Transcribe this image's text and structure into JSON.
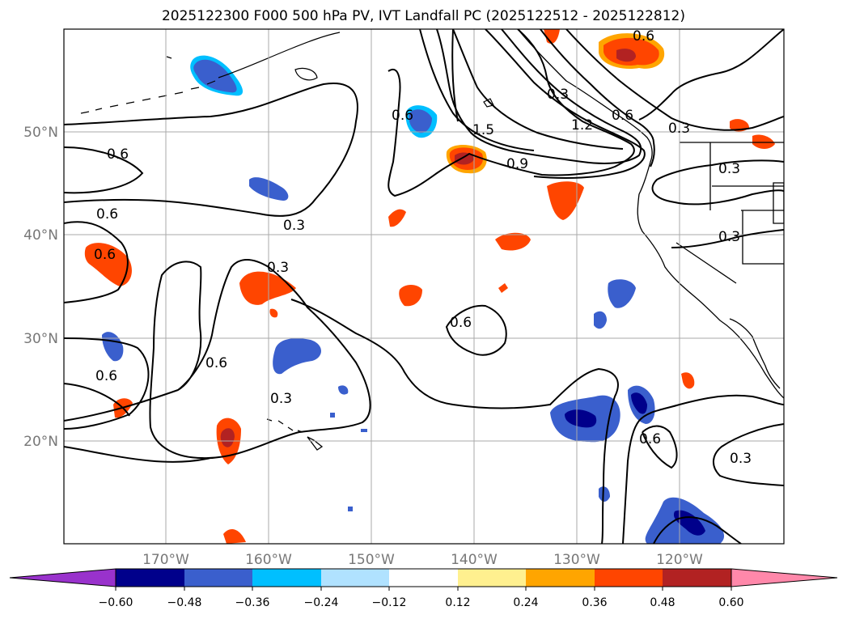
{
  "title": "2025122300 F000 500 hPa PV, IVT Landfall PC (2025122512 - 2025122812)",
  "map": {
    "lon_range": [
      -180,
      -110
    ],
    "lat_range": [
      10,
      60
    ],
    "lat_ticks": [
      {
        "value": 50,
        "label": "50°N"
      },
      {
        "value": 40,
        "label": "40°N"
      },
      {
        "value": 30,
        "label": "30°N"
      },
      {
        "value": 20,
        "label": "20°N"
      }
    ],
    "lon_ticks": [
      {
        "value": -170,
        "label": "170°W"
      },
      {
        "value": -160,
        "label": "160°W"
      },
      {
        "value": -150,
        "label": "150°W"
      },
      {
        "value": -140,
        "label": "140°W"
      },
      {
        "value": -130,
        "label": "130°W"
      },
      {
        "value": -120,
        "label": "120°W"
      }
    ],
    "contour_labels": [
      "0.6",
      "0.6",
      "0.6",
      "0.3",
      "0.3",
      "0.6",
      "0.3",
      "0.6",
      "1.5",
      "0.9",
      "1.2",
      "0.6",
      "0.3",
      "0.3",
      "0.3",
      "0.6",
      "0.3",
      "0.6",
      "0.6",
      "0.3",
      "0.6"
    ]
  },
  "colorbar": {
    "colors": [
      "#9932cc",
      "#00008b",
      "#3a5fcd",
      "#00bfff",
      "#b0e2ff",
      "#ffffff",
      "#fff08f",
      "#ffa500",
      "#ff4500",
      "#b22222",
      "#ff88aa"
    ],
    "ticks": [
      "−0.60",
      "−0.48",
      "−0.36",
      "−0.24",
      "−0.12",
      "0.12",
      "0.24",
      "0.36",
      "0.48",
      "0.60"
    ]
  }
}
